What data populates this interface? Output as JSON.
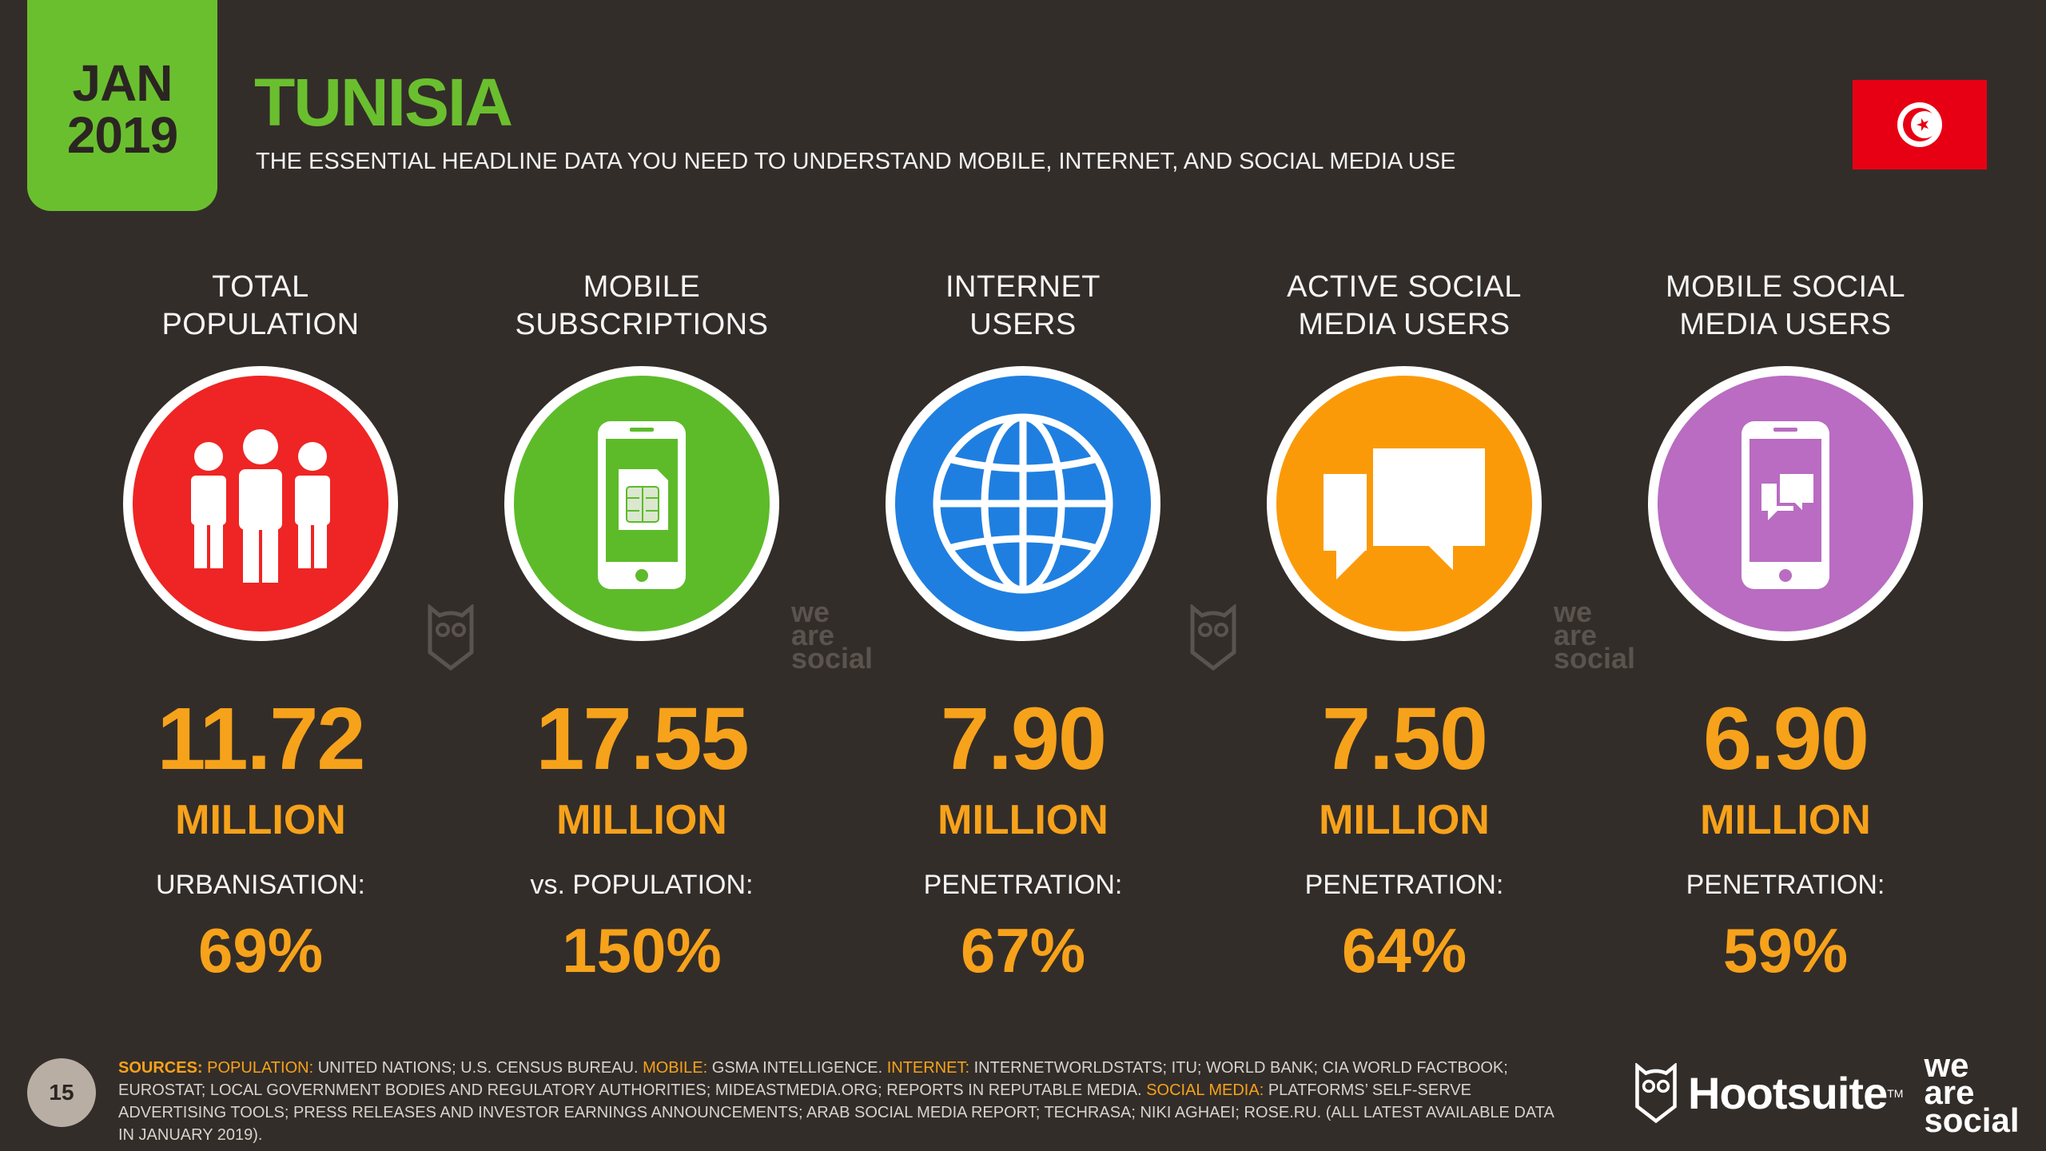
{
  "header": {
    "date_month": "JAN",
    "date_year": "2019",
    "title": "TUNISIA",
    "subtitle": "THE ESSENTIAL HEADLINE DATA YOU NEED TO UNDERSTAND MOBILE, INTERNET, AND SOCIAL MEDIA USE",
    "flag_icon": "tunisia-flag"
  },
  "colors": {
    "background": "#332d29",
    "accent_green": "#6abf2f",
    "value_orange": "#f7a21b",
    "population_red": "#ee2524",
    "mobile_green": "#5dbb2a",
    "internet_blue": "#1f7fe0",
    "social_orange": "#fb9a09",
    "mobile_social_purple": "#b96cc1"
  },
  "stats": [
    {
      "label_line1": "TOTAL",
      "label_line2": "POPULATION",
      "icon": "people-icon",
      "value": "11.72",
      "unit": "MILLION",
      "sub_label": "URBANISATION:",
      "sub_value": "69%"
    },
    {
      "label_line1": "MOBILE",
      "label_line2": "SUBSCRIPTIONS",
      "icon": "sim-phone-icon",
      "value": "17.55",
      "unit": "MILLION",
      "sub_label": "vs. POPULATION:",
      "sub_value": "150%"
    },
    {
      "label_line1": "INTERNET",
      "label_line2": "USERS",
      "icon": "globe-icon",
      "value": "7.90",
      "unit": "MILLION",
      "sub_label": "PENETRATION:",
      "sub_value": "67%"
    },
    {
      "label_line1": "ACTIVE SOCIAL",
      "label_line2": "MEDIA USERS",
      "icon": "speech-bubbles-icon",
      "value": "7.50",
      "unit": "MILLION",
      "sub_label": "PENETRATION:",
      "sub_value": "64%"
    },
    {
      "label_line1": "MOBILE SOCIAL",
      "label_line2": "MEDIA USERS",
      "icon": "phone-chat-icon",
      "value": "6.90",
      "unit": "MILLION",
      "sub_label": "PENETRATION:",
      "sub_value": "59%"
    }
  ],
  "watermarks": {
    "was_line1": "we",
    "was_line2": "are",
    "was_line3": "social"
  },
  "footer": {
    "page_number": "15",
    "sources_label": "SOURCES:",
    "pop_label": "POPULATION:",
    "pop_text": "UNITED NATIONS; U.S. CENSUS BUREAU.",
    "mobile_label": "MOBILE:",
    "mobile_text": "GSMA INTELLIGENCE.",
    "internet_label": "INTERNET:",
    "internet_text": "INTERNETWORLDSTATS; ITU; WORLD BANK; CIA WORLD FACTBOOK; EUROSTAT; LOCAL GOVERNMENT BODIES AND REGULATORY AUTHORITIES; MIDEASTMEDIA.ORG; REPORTS IN REPUTABLE MEDIA.",
    "social_label": "SOCIAL MEDIA:",
    "social_text": "PLATFORMS’ SELF-SERVE ADVERTISING TOOLS; PRESS RELEASES AND INVESTOR EARNINGS ANNOUNCEMENTS; ARAB SOCIAL MEDIA REPORT; TECHRASA; NIKI AGHAEI; ROSE.RU. (ALL LATEST AVAILABLE DATA IN JANUARY 2019).",
    "brand_name": "Hootsuite",
    "brand_tm": "TM",
    "was_line1": "we",
    "was_line2": "are",
    "was_line3": "social"
  }
}
